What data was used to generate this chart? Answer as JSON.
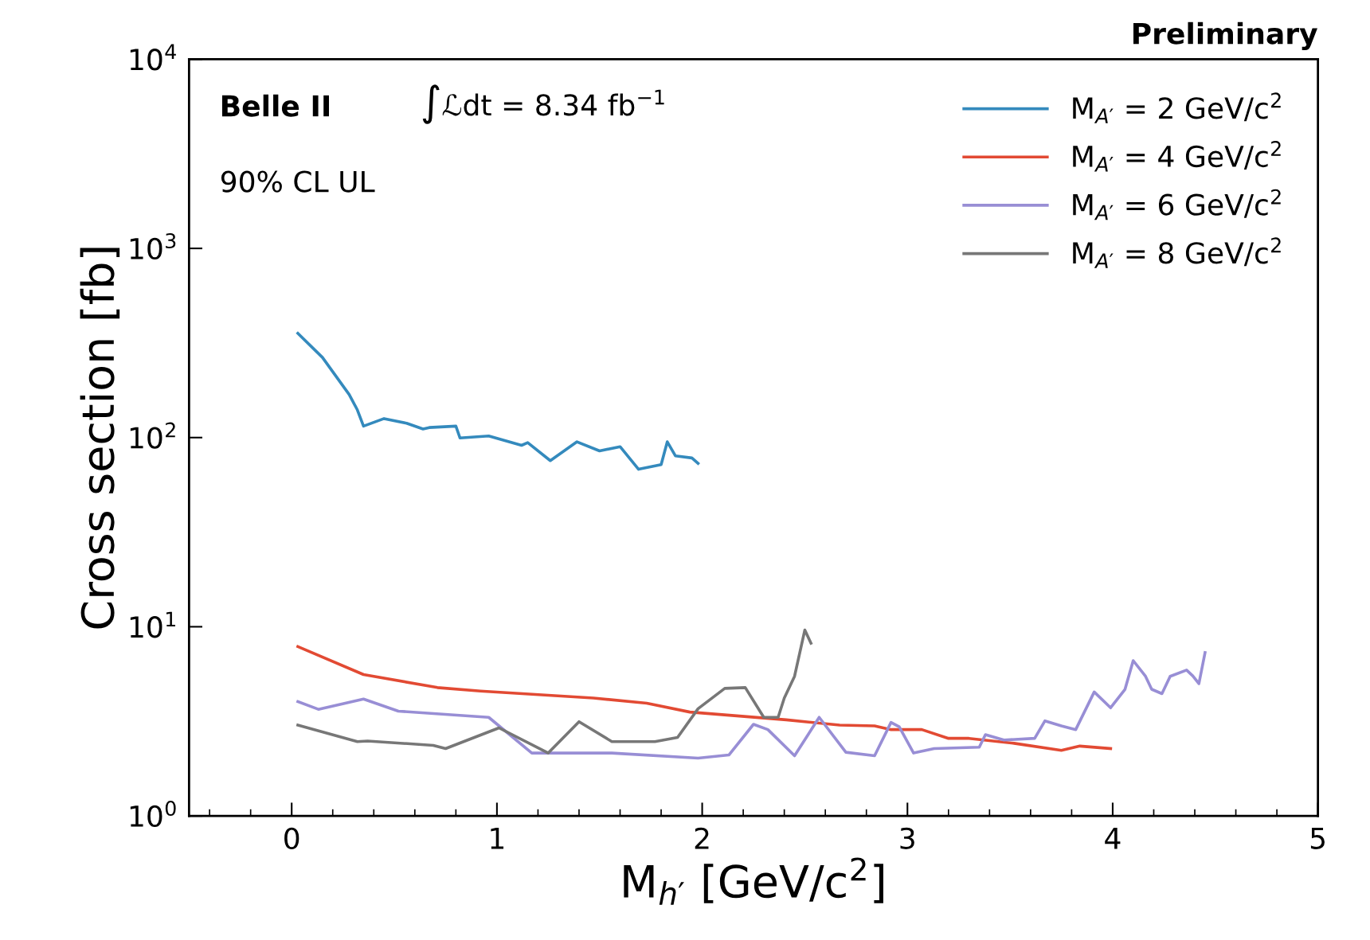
{
  "chart_data": {
    "type": "line",
    "xlabel": "M$_{h′}$ [GeV/c$^{2}$]",
    "ylabel": "Cross section [fb]",
    "annotations": [
      "Preliminary",
      "Belle II",
      "∫ℒdt = 8.34 fb$^{−1}$",
      "90% CL UL"
    ],
    "log": "y",
    "xlim": [
      -0.5,
      5
    ],
    "xticks": [
      0,
      1,
      2,
      3,
      4,
      5
    ],
    "ylim": [
      1,
      10000
    ],
    "yticks": [
      {
        "value": 1,
        "label": "10$^{0}$"
      },
      {
        "value": 10,
        "label": "10$^{1}$"
      },
      {
        "value": 100,
        "label": "10$^{2}$"
      },
      {
        "value": 1000,
        "label": "10$^{3}$"
      },
      {
        "value": 10000,
        "label": "10$^{4}$"
      }
    ],
    "grid": false,
    "legend": "top right",
    "line_style": "solid",
    "marker": "none",
    "series": [
      {
        "name": "M$_{A′}$ = 2 GeV/c$^{2}$",
        "color": "#348abd",
        "x": [
          0.03,
          0.15,
          0.28,
          0.32,
          0.35,
          0.45,
          0.56,
          0.64,
          0.67,
          0.8,
          0.82,
          0.96,
          1.12,
          1.15,
          1.26,
          1.39,
          1.5,
          1.6,
          1.69,
          1.8,
          1.83,
          1.87,
          1.95,
          1.98
        ],
        "values": [
          356,
          265,
          169,
          140,
          115,
          126,
          119,
          111,
          113,
          115,
          99.5,
          102,
          91,
          94,
          75.5,
          95,
          85,
          89.5,
          68,
          72,
          95,
          80,
          78,
          73
        ]
      },
      {
        "name": "M$_{A′}$ = 4 GeV/c$^{2}$",
        "color": "#e24a33",
        "x": [
          0.03,
          0.35,
          0.71,
          0.92,
          1.47,
          1.73,
          1.94,
          2.41,
          2.67,
          2.84,
          2.92,
          3.07,
          3.2,
          3.3,
          3.52,
          3.75,
          3.84,
          3.99
        ],
        "values": [
          7.85,
          5.59,
          4.77,
          4.57,
          4.2,
          3.94,
          3.54,
          3.22,
          3.02,
          2.99,
          2.86,
          2.86,
          2.57,
          2.57,
          2.42,
          2.22,
          2.34,
          2.27
        ]
      },
      {
        "name": "M$_{A′}$ = 6 GeV/c$^{2}$",
        "color": "#988ed5",
        "x": [
          0.03,
          0.13,
          0.35,
          0.52,
          0.96,
          1.17,
          1.56,
          1.98,
          2.13,
          2.25,
          2.32,
          2.45,
          2.57,
          2.7,
          2.84,
          2.92,
          2.96,
          3.03,
          3.13,
          3.35,
          3.38,
          3.47,
          3.62,
          3.67,
          3.75,
          3.82,
          3.91,
          3.99,
          4.06,
          4.1,
          4.16,
          4.19,
          4.24,
          4.28,
          4.36,
          4.39,
          4.42,
          4.45
        ],
        "values": [
          4.02,
          3.66,
          4.15,
          3.58,
          3.32,
          2.15,
          2.15,
          2.02,
          2.1,
          3.05,
          2.86,
          2.08,
          3.32,
          2.17,
          2.08,
          3.12,
          2.96,
          2.15,
          2.27,
          2.31,
          2.69,
          2.52,
          2.57,
          3.18,
          2.99,
          2.86,
          4.52,
          3.73,
          4.67,
          6.62,
          5.47,
          4.67,
          4.43,
          5.47,
          5.9,
          5.5,
          5.0,
          7.3
        ]
      },
      {
        "name": "M$_{A′}$ = 8 GeV/c$^{2}$",
        "color": "#777777",
        "x": [
          0.03,
          0.32,
          0.37,
          0.69,
          0.75,
          1.01,
          1.25,
          1.4,
          1.56,
          1.77,
          1.88,
          1.98,
          2.11,
          2.21,
          2.3,
          2.37,
          2.4,
          2.45,
          2.5,
          2.53
        ],
        "values": [
          3.02,
          2.47,
          2.49,
          2.36,
          2.27,
          2.92,
          2.15,
          3.15,
          2.47,
          2.47,
          2.6,
          3.69,
          4.72,
          4.77,
          3.32,
          3.32,
          4.2,
          5.47,
          9.61,
          8.19
        ]
      }
    ]
  }
}
